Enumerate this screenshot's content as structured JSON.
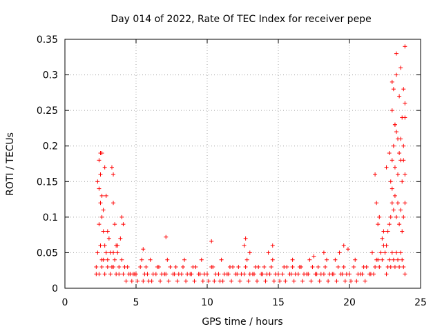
{
  "chart_data": {
    "type": "scatter",
    "title": "Day 014 of 2022, Rate Of TEC Index for receiver pepe",
    "xlabel": "GPS time / hours",
    "ylabel": "ROTI / TECUs",
    "xlim": [
      0,
      25
    ],
    "ylim": [
      0,
      0.35
    ],
    "xticks": [
      0,
      5,
      10,
      15,
      20,
      25
    ],
    "yticks": [
      0,
      0.05,
      0.1,
      0.15,
      0.2,
      0.25,
      0.3,
      0.35
    ],
    "xtick_labels": [
      "0",
      "5",
      "10",
      "15",
      "20",
      "25"
    ],
    "ytick_labels": [
      "0",
      "0.05",
      "0.1",
      "0.15",
      "0.2",
      "0.25",
      "0.3",
      "0.35"
    ],
    "grid": true,
    "marker": "+",
    "marker_color": "#ff0000",
    "series": [
      {
        "x": [
          2.2,
          2.3,
          2.4,
          2.5,
          2.5,
          2.6,
          2.6,
          2.7,
          2.7,
          2.8,
          2.9,
          3.0,
          3.1,
          3.2,
          3.3,
          3.4,
          3.5,
          3.6,
          3.7,
          3.8,
          4.0,
          4.2,
          4.4,
          4.6,
          4.8,
          2.3,
          2.4,
          2.5,
          2.6,
          2.8,
          2.9,
          3.3,
          3.4,
          3.4,
          4.0,
          4.1,
          2.4,
          2.5,
          2.6,
          2.7,
          3.0,
          3.5,
          3.7,
          3.9,
          2.2,
          2.4,
          2.6,
          2.8,
          3.0,
          3.2,
          3.4,
          3.6,
          3.8,
          4.1,
          4.3,
          4.5,
          4.7,
          4.9,
          5.0,
          5.3,
          5.6,
          5.9,
          6.2,
          6.5,
          6.8,
          7.1,
          7.4,
          7.7,
          8.0,
          8.3,
          8.6,
          8.9,
          9.2,
          9.5,
          9.8,
          5.1,
          5.5,
          5.8,
          6.1,
          6.4,
          6.7,
          7.0,
          7.3,
          7.6,
          7.9,
          8.2,
          8.5,
          8.8,
          9.1,
          9.4,
          9.7,
          5.4,
          5.7,
          6.0,
          6.6,
          7.2,
          7.8,
          8.4,
          9.0,
          9.6,
          7.1,
          5.5,
          10.0,
          10.3,
          10.6,
          10.9,
          11.2,
          11.5,
          11.8,
          12.1,
          12.4,
          12.7,
          13.0,
          13.3,
          13.6,
          13.9,
          14.2,
          14.5,
          14.8,
          10.1,
          10.5,
          10.8,
          11.1,
          11.4,
          11.7,
          12.0,
          12.3,
          12.6,
          12.9,
          13.2,
          13.5,
          13.8,
          14.1,
          14.4,
          14.7,
          10.4,
          11.0,
          11.6,
          12.2,
          12.8,
          13.4,
          14.0,
          14.6,
          10.3,
          12.7,
          12.6,
          13.0,
          14.3,
          14.6,
          15.0,
          15.3,
          15.6,
          15.9,
          16.2,
          16.5,
          16.8,
          17.1,
          17.4,
          17.7,
          18.0,
          18.3,
          18.6,
          18.9,
          19.2,
          19.5,
          19.8,
          15.1,
          15.5,
          15.8,
          16.1,
          16.4,
          16.7,
          17.0,
          17.3,
          17.6,
          17.9,
          18.2,
          18.5,
          18.8,
          19.1,
          19.4,
          19.7,
          15.4,
          16.0,
          16.6,
          17.2,
          17.8,
          18.4,
          19.0,
          19.6,
          16.0,
          17.5,
          18.2,
          19.3,
          19.6,
          19.9,
          20.0,
          20.3,
          20.6,
          20.9,
          21.2,
          21.5,
          21.8,
          22.0,
          22.2,
          22.4,
          20.1,
          20.5,
          20.8,
          21.1,
          21.4,
          21.7,
          22.1,
          22.3,
          20.4,
          21.0,
          21.6,
          21.9,
          21.8,
          21.9,
          22.0,
          22.1,
          22.3,
          22.4,
          22.5,
          22.6,
          22.7,
          22.8,
          22.9,
          23.0,
          23.1,
          23.2,
          23.3,
          23.4,
          23.5,
          23.6,
          23.7,
          23.8,
          23.9,
          22.6,
          22.7,
          22.8,
          22.9,
          23.0,
          23.1,
          23.2,
          23.3,
          23.4,
          23.5,
          23.6,
          23.7,
          23.8,
          23.9,
          22.9,
          23.0,
          23.1,
          23.2,
          23.3,
          23.4,
          23.5,
          23.6,
          23.7,
          23.8,
          23.9,
          23.0,
          23.1,
          23.3,
          23.5,
          23.7,
          23.9,
          23.0,
          23.3,
          23.6,
          23.9,
          23.2,
          23.8,
          22.6,
          22.8,
          23.0,
          23.2,
          23.4,
          23.6,
          23.8,
          23.9
        ],
        "y": [
          0.02,
          0.05,
          0.09,
          0.12,
          0.06,
          0.1,
          0.03,
          0.08,
          0.04,
          0.06,
          0.05,
          0.04,
          0.07,
          0.05,
          0.03,
          0.05,
          0.04,
          0.06,
          0.05,
          0.03,
          0.04,
          0.03,
          0.03,
          0.02,
          0.02,
          0.15,
          0.18,
          0.19,
          0.19,
          0.17,
          0.13,
          0.17,
          0.16,
          0.12,
          0.1,
          0.09,
          0.14,
          0.16,
          0.13,
          0.11,
          0.08,
          0.09,
          0.06,
          0.07,
          0.03,
          0.02,
          0.04,
          0.02,
          0.03,
          0.02,
          0.03,
          0.02,
          0.02,
          0.02,
          0.01,
          0.02,
          0.01,
          0.02,
          0.02,
          0.03,
          0.02,
          0.01,
          0.02,
          0.03,
          0.02,
          0.02,
          0.03,
          0.02,
          0.02,
          0.03,
          0.02,
          0.02,
          0.03,
          0.02,
          0.02,
          0.01,
          0.01,
          0.02,
          0.01,
          0.02,
          0.01,
          0.02,
          0.01,
          0.02,
          0.01,
          0.02,
          0.01,
          0.02,
          0.01,
          0.02,
          0.01,
          0.04,
          0.03,
          0.04,
          0.03,
          0.04,
          0.03,
          0.04,
          0.03,
          0.04,
          0.072,
          0.055,
          0.02,
          0.03,
          0.02,
          0.01,
          0.02,
          0.02,
          0.03,
          0.02,
          0.02,
          0.03,
          0.02,
          0.02,
          0.03,
          0.02,
          0.02,
          0.03,
          0.02,
          0.01,
          0.01,
          0.02,
          0.01,
          0.02,
          0.01,
          0.02,
          0.01,
          0.02,
          0.01,
          0.02,
          0.01,
          0.02,
          0.01,
          0.02,
          0.01,
          0.03,
          0.04,
          0.03,
          0.03,
          0.04,
          0.03,
          0.03,
          0.04,
          0.066,
          0.07,
          0.06,
          0.05,
          0.05,
          0.06,
          0.02,
          0.02,
          0.03,
          0.02,
          0.02,
          0.03,
          0.02,
          0.02,
          0.03,
          0.02,
          0.02,
          0.03,
          0.02,
          0.02,
          0.03,
          0.02,
          0.02,
          0.01,
          0.01,
          0.02,
          0.01,
          0.02,
          0.01,
          0.02,
          0.01,
          0.02,
          0.01,
          0.02,
          0.01,
          0.02,
          0.01,
          0.02,
          0.01,
          0.03,
          0.03,
          0.03,
          0.04,
          0.03,
          0.04,
          0.04,
          0.03,
          0.04,
          0.045,
          0.05,
          0.05,
          0.06,
          0.055,
          0.02,
          0.03,
          0.02,
          0.02,
          0.03,
          0.02,
          0.03,
          0.04,
          0.05,
          0.06,
          0.01,
          0.01,
          0.02,
          0.01,
          0.02,
          0.02,
          0.03,
          0.04,
          0.04,
          0.03,
          0.05,
          0.04,
          0.16,
          0.12,
          0.09,
          0.1,
          0.07,
          0.08,
          0.05,
          0.06,
          0.08,
          0.09,
          0.1,
          0.12,
          0.11,
          0.13,
          0.1,
          0.12,
          0.09,
          0.11,
          0.08,
          0.1,
          0.12,
          0.02,
          0.03,
          0.04,
          0.03,
          0.05,
          0.04,
          0.03,
          0.05,
          0.04,
          0.03,
          0.05,
          0.04,
          0.03,
          0.02,
          0.15,
          0.18,
          0.2,
          0.17,
          0.22,
          0.16,
          0.19,
          0.21,
          0.15,
          0.18,
          0.16,
          0.25,
          0.28,
          0.3,
          0.27,
          0.24,
          0.26,
          0.29,
          0.33,
          0.31,
          0.34,
          0.23,
          0.28,
          0.17,
          0.19,
          0.14,
          0.23,
          0.21,
          0.18,
          0.2,
          0.24
        ]
      }
    ]
  }
}
